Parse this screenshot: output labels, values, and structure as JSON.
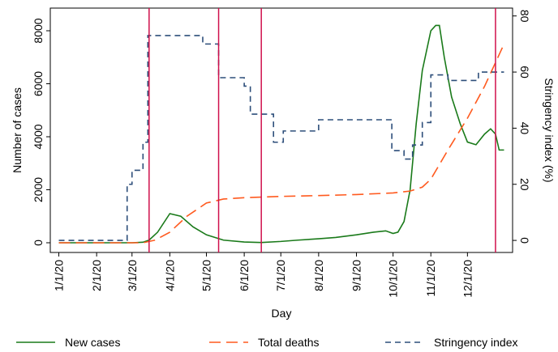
{
  "chart_data": {
    "type": "line",
    "x_label": "Day",
    "y_label": "Number of cases",
    "y2_label": "Stringency index (%)",
    "xlim": [
      "12/25/19",
      "1/7/21"
    ],
    "xticks": [
      "1/1/20",
      "2/1/20",
      "3/1/20",
      "4/1/20",
      "5/1/20",
      "6/1/20",
      "7/1/20",
      "8/1/20",
      "9/1/20",
      "10/1/20",
      "11/1/20",
      "12/1/20"
    ],
    "ylim": [
      -366,
      8855
    ],
    "yticks": [
      0,
      2000,
      4000,
      6000,
      8000
    ],
    "y2lim": [
      -4.3,
      82.8
    ],
    "y2ticks": [
      0,
      20,
      40,
      60,
      80
    ],
    "reference_lines": {
      "x": [
        "3/15/20",
        "5/11/20",
        "6/15/20",
        "12/24/20"
      ],
      "color": "#d0104c"
    },
    "series": [
      {
        "name": "New cases",
        "color": "#1a7a1a",
        "dash": "none",
        "x": [
          "1/1/20",
          "3/1/20",
          "3/10/20",
          "3/15/20",
          "3/22/20",
          "4/1/20",
          "4/10/20",
          "4/20/20",
          "5/1/20",
          "5/15/20",
          "6/1/20",
          "6/15/20",
          "7/1/20",
          "7/15/20",
          "8/1/20",
          "8/15/20",
          "9/1/20",
          "9/15/20",
          "9/25/20",
          "10/1/20",
          "10/5/20",
          "10/10/20",
          "10/15/20",
          "10/20/20",
          "10/25/20",
          "11/1/20",
          "11/5/20",
          "11/8/20",
          "11/12/20",
          "11/18/20",
          "11/25/20",
          "12/1/20",
          "12/8/20",
          "12/15/20",
          "12/20/20",
          "12/24/20",
          "12/27/20",
          "12/31/20"
        ],
        "values": [
          0,
          0,
          20,
          100,
          400,
          1100,
          1000,
          600,
          300,
          100,
          30,
          10,
          50,
          100,
          150,
          200,
          300,
          400,
          450,
          350,
          400,
          800,
          2000,
          4500,
          6500,
          8000,
          8200,
          8200,
          7000,
          5500,
          4500,
          3800,
          3700,
          4100,
          4300,
          4100,
          3500,
          3500
        ]
      },
      {
        "name": "Total deaths",
        "color": "#ff5a1f",
        "dash": "14 7",
        "x": [
          "1/1/20",
          "3/10/20",
          "3/20/20",
          "4/1/20",
          "4/15/20",
          "5/1/20",
          "5/15/20",
          "6/1/20",
          "7/1/20",
          "8/1/20",
          "9/1/20",
          "10/1/20",
          "10/15/20",
          "10/25/20",
          "11/1/20",
          "11/15/20",
          "12/1/20",
          "12/15/20",
          "12/24/20",
          "12/31/20"
        ],
        "values": [
          0,
          0,
          100,
          400,
          1000,
          1500,
          1650,
          1700,
          1750,
          1780,
          1820,
          1880,
          1950,
          2100,
          2400,
          3500,
          4700,
          5900,
          6800,
          7500
        ]
      },
      {
        "name": "Stringency index",
        "color": "#2d4e7a",
        "dash": "7 5",
        "axis": "y2",
        "x": [
          "1/1/20",
          "2/26/20",
          "2/26/20",
          "3/1/20",
          "3/1/20",
          "3/10/20",
          "3/10/20",
          "3/14/20",
          "3/14/20",
          "4/28/20",
          "4/28/20",
          "5/11/20",
          "5/11/20",
          "6/1/20",
          "6/1/20",
          "6/6/20",
          "6/6/20",
          "6/25/20",
          "6/25/20",
          "7/3/20",
          "7/3/20",
          "8/1/20",
          "8/1/20",
          "9/30/20",
          "9/30/20",
          "10/10/20",
          "10/10/20",
          "10/17/20",
          "10/17/20",
          "10/25/20",
          "10/25/20",
          "11/1/20",
          "11/1/20",
          "11/15/20",
          "11/15/20",
          "12/10/20",
          "12/10/20",
          "12/31/20"
        ],
        "values": [
          0,
          0,
          20,
          20,
          25,
          25,
          35,
          35,
          73,
          73,
          70,
          70,
          58,
          58,
          55,
          55,
          45,
          45,
          35,
          35,
          39,
          39,
          43,
          43,
          32,
          32,
          29,
          29,
          34,
          34,
          42,
          42,
          59,
          59,
          57,
          57,
          60,
          60
        ]
      }
    ]
  }
}
